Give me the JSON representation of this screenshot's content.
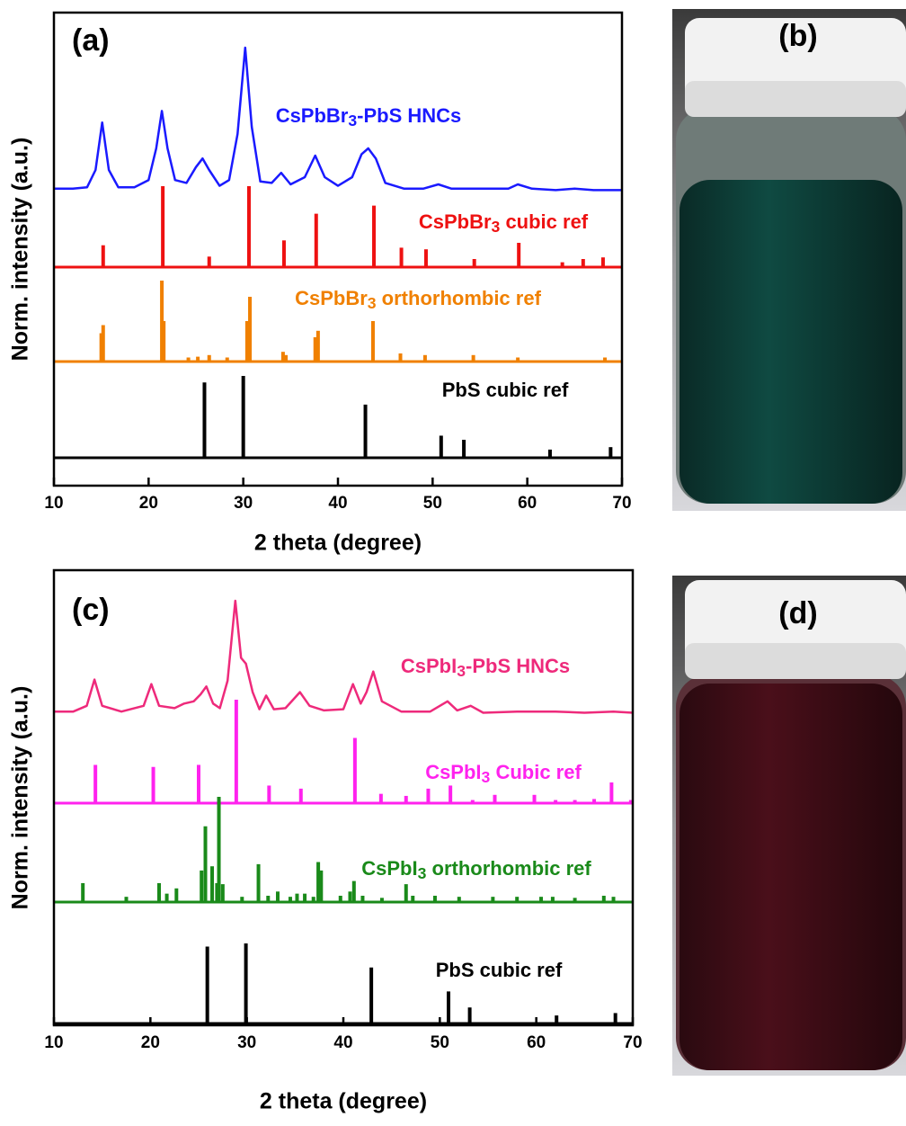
{
  "chart_data": [
    {
      "type": "line",
      "panel_label": "(a)",
      "xlabel": "2 theta (degree)",
      "ylabel": "Norm. intensity (a.u.)",
      "xlim": [
        10,
        70
      ],
      "xticks": [
        10,
        20,
        30,
        40,
        50,
        60,
        70
      ],
      "series": [
        {
          "name": "CsPbBr3-PbS HNCs",
          "color": "#1a1aff",
          "type": "line",
          "x": [
            10,
            12,
            13.5,
            14.4,
            15.1,
            15.8,
            16.8,
            18.5,
            20,
            20.8,
            21.4,
            22,
            22.8,
            24,
            25,
            25.7,
            26.4,
            27.5,
            28.5,
            29.4,
            30.2,
            30.9,
            31.8,
            33,
            34,
            35,
            36.5,
            37.6,
            38.6,
            40,
            41.5,
            42.5,
            43.2,
            44,
            45,
            47,
            49,
            50.6,
            52,
            55,
            58,
            59,
            60.5,
            63,
            65,
            67,
            70
          ],
          "values": [
            0.02,
            0.02,
            0.03,
            0.15,
            0.48,
            0.15,
            0.03,
            0.03,
            0.08,
            0.3,
            0.56,
            0.3,
            0.08,
            0.06,
            0.17,
            0.23,
            0.15,
            0.04,
            0.08,
            0.4,
            1.0,
            0.45,
            0.07,
            0.06,
            0.13,
            0.05,
            0.1,
            0.25,
            0.1,
            0.04,
            0.1,
            0.26,
            0.3,
            0.23,
            0.06,
            0.02,
            0.02,
            0.05,
            0.02,
            0.02,
            0.02,
            0.05,
            0.02,
            0.01,
            0.02,
            0.01,
            0.01
          ]
        },
        {
          "name": "CsPbBr3 cubic ref",
          "color": "#ee1111",
          "type": "stem",
          "x": [
            15.2,
            21.5,
            26.4,
            30.6,
            34.3,
            37.7,
            43.8,
            46.7,
            49.3,
            54.4,
            59.1,
            63.7,
            65.9,
            68
          ],
          "values": [
            0.27,
            1.0,
            0.13,
            1.0,
            0.33,
            0.66,
            0.76,
            0.24,
            0.22,
            0.1,
            0.3,
            0.06,
            0.1,
            0.12
          ]
        },
        {
          "name": "CsPbBr3 orthorhombic ref",
          "color": "#f08000",
          "type": "stem",
          "x": [
            15.0,
            15.2,
            21.4,
            21.6,
            24.2,
            25.2,
            26.4,
            28.3,
            30.4,
            30.7,
            34.2,
            34.5,
            37.6,
            37.9,
            43.7,
            46.6,
            49.2,
            54.3,
            59,
            68.2
          ],
          "values": [
            0.35,
            0.45,
            1.0,
            0.5,
            0.05,
            0.06,
            0.08,
            0.05,
            0.5,
            0.8,
            0.12,
            0.08,
            0.3,
            0.38,
            0.5,
            0.1,
            0.08,
            0.08,
            0.05,
            0.05
          ]
        },
        {
          "name": "PbS cubic ref",
          "color": "#000000",
          "type": "stem",
          "x": [
            25.9,
            30.0,
            42.9,
            50.9,
            53.3,
            62.4,
            68.8
          ],
          "values": [
            0.92,
            1.0,
            0.65,
            0.27,
            0.22,
            0.1,
            0.13
          ]
        }
      ]
    },
    {
      "type": "line",
      "panel_label": "(c)",
      "xlabel": "2 theta (degree)",
      "ylabel": "Norm. intensity (a.u.)",
      "xlim": [
        10,
        70
      ],
      "xticks": [
        10,
        20,
        30,
        40,
        50,
        60,
        70
      ],
      "series": [
        {
          "name": "CsPbI3-PbS HNCs",
          "color": "#ee2a7b",
          "type": "line",
          "x": [
            10,
            12,
            13.4,
            14.2,
            15,
            17,
            19.3,
            20.1,
            20.9,
            22.5,
            23.5,
            24.5,
            25.2,
            25.8,
            26.5,
            27.2,
            28,
            28.8,
            29.4,
            29.9,
            30.6,
            31.3,
            32,
            32.8,
            34,
            35.5,
            36.5,
            38,
            40,
            41,
            41.8,
            42.4,
            43.1,
            44,
            46,
            49,
            50.8,
            51.8,
            53.2,
            54.5,
            58,
            62,
            65,
            68,
            70
          ],
          "values": [
            0.03,
            0.03,
            0.08,
            0.31,
            0.08,
            0.03,
            0.08,
            0.27,
            0.08,
            0.06,
            0.1,
            0.12,
            0.18,
            0.25,
            0.1,
            0.06,
            0.3,
            1.0,
            0.5,
            0.45,
            0.2,
            0.05,
            0.17,
            0.05,
            0.06,
            0.2,
            0.08,
            0.04,
            0.05,
            0.27,
            0.1,
            0.2,
            0.38,
            0.12,
            0.03,
            0.03,
            0.12,
            0.04,
            0.08,
            0.02,
            0.03,
            0.03,
            0.02,
            0.03,
            0.02
          ]
        },
        {
          "name": "CsPbI3 Cubic ref",
          "color": "#ff22ee",
          "type": "stem",
          "x": [
            14.3,
            20.3,
            25,
            28.9,
            32.3,
            35.6,
            41.2,
            43.9,
            46.5,
            48.8,
            51.1,
            53.4,
            55.7,
            59.8,
            62,
            64,
            66,
            67.8,
            69.8
          ],
          "values": [
            0.37,
            0.35,
            0.37,
            1.0,
            0.17,
            0.14,
            0.63,
            0.09,
            0.07,
            0.14,
            0.17,
            0.03,
            0.08,
            0.08,
            0.03,
            0.03,
            0.04,
            0.2,
            0.03
          ]
        },
        {
          "name": "CsPbI3  orthorhombic ref",
          "color": "#1a8a1a",
          "type": "stem",
          "x": [
            13,
            17.5,
            20.9,
            21.7,
            22.7,
            25.3,
            25.7,
            26.4,
            26.9,
            27.1,
            27.5,
            29.5,
            31.2,
            32.2,
            33.2,
            34.5,
            35.2,
            36,
            36.9,
            37.4,
            37.7,
            39.7,
            40.7,
            41.1,
            42,
            44,
            46.5,
            47.2,
            49.5,
            52,
            55.5,
            58,
            60.5,
            61.7,
            64,
            67,
            68
          ],
          "values": [
            0.18,
            0.05,
            0.18,
            0.08,
            0.13,
            0.3,
            0.72,
            0.34,
            0.18,
            1.0,
            0.17,
            0.05,
            0.36,
            0.06,
            0.1,
            0.05,
            0.08,
            0.08,
            0.05,
            0.38,
            0.3,
            0.06,
            0.1,
            0.2,
            0.06,
            0.04,
            0.17,
            0.06,
            0.06,
            0.05,
            0.05,
            0.05,
            0.05,
            0.05,
            0.04,
            0.06,
            0.05
          ]
        },
        {
          "name": "PbS cubic ref",
          "color": "#000000",
          "type": "stem",
          "x": [
            25.9,
            29.9,
            42.9,
            50.9,
            53.1,
            62.1,
            68.2
          ],
          "values": [
            0.96,
            1.0,
            0.7,
            0.4,
            0.2,
            0.1,
            0.13
          ]
        }
      ]
    }
  ],
  "photos": [
    {
      "label": "(b)"
    },
    {
      "label": "(d)"
    }
  ]
}
